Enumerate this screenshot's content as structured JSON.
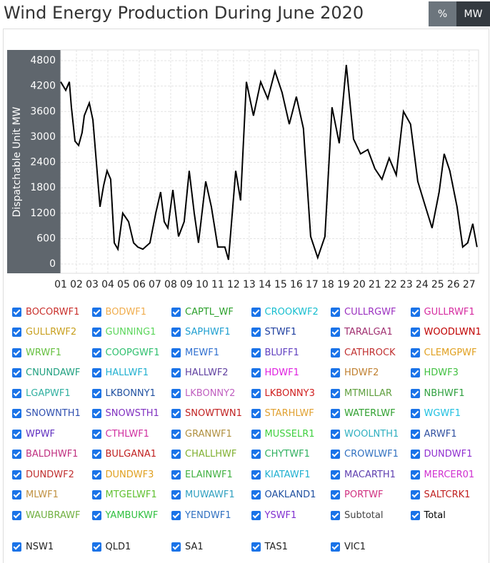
{
  "header": {
    "title": "Wind Energy Production During June 2020",
    "toggle": [
      "%",
      "MW"
    ],
    "active": 1
  },
  "chart_data": {
    "type": "line",
    "y_label": "Dispatchable Unit MW",
    "xlim": [
      1,
      27.6
    ],
    "xticks": [
      {
        "value": 1,
        "label": "01"
      },
      {
        "value": 2,
        "label": "02"
      },
      {
        "value": 3,
        "label": "03"
      },
      {
        "value": 4,
        "label": "04"
      },
      {
        "value": 5,
        "label": "05"
      },
      {
        "value": 6,
        "label": "06"
      },
      {
        "value": 7,
        "label": "07"
      },
      {
        "value": 8,
        "label": "08"
      },
      {
        "value": 9,
        "label": "09"
      },
      {
        "value": 10,
        "label": "10"
      },
      {
        "value": 11,
        "label": "11"
      },
      {
        "value": 12,
        "label": "12"
      },
      {
        "value": 13,
        "label": "13"
      },
      {
        "value": 14,
        "label": "14"
      },
      {
        "value": 15,
        "label": "15"
      },
      {
        "value": 16,
        "label": "16"
      },
      {
        "value": 17,
        "label": "17"
      },
      {
        "value": 18,
        "label": "18"
      },
      {
        "value": 19,
        "label": "19"
      },
      {
        "value": 20,
        "label": "20"
      },
      {
        "value": 21,
        "label": "21"
      },
      {
        "value": 22,
        "label": "22"
      },
      {
        "value": 23,
        "label": "23"
      },
      {
        "value": 24,
        "label": "24"
      },
      {
        "value": 25,
        "label": "25"
      },
      {
        "value": 26,
        "label": "26"
      },
      {
        "value": 27,
        "label": "27"
      }
    ],
    "ylim": [
      0,
      4800
    ],
    "yticks": [
      0,
      600,
      1200,
      1800,
      2400,
      3000,
      3600,
      4200,
      4800
    ],
    "grid": true,
    "series": [
      {
        "name": "Total",
        "color": "#000000",
        "x": [
          1.0,
          1.32,
          1.55,
          1.68,
          1.91,
          2.14,
          2.36,
          2.5,
          2.82,
          3.05,
          3.27,
          3.5,
          3.73,
          3.95,
          4.18,
          4.41,
          4.64,
          4.95,
          5.32,
          5.64,
          5.91,
          6.23,
          6.68,
          7.05,
          7.36,
          7.59,
          7.82,
          8.14,
          8.5,
          8.86,
          9.18,
          9.5,
          9.77,
          10.23,
          10.59,
          11.0,
          11.45,
          11.68,
          12.14,
          12.45,
          12.82,
          13.27,
          13.73,
          14.18,
          14.64,
          15.09,
          15.55,
          16.0,
          16.45,
          16.91,
          17.36,
          17.82,
          18.27,
          18.73,
          19.18,
          19.64,
          20.09,
          20.55,
          21.0,
          21.45,
          21.91,
          22.36,
          22.82,
          23.27,
          23.73,
          24.18,
          24.64,
          25.09,
          25.41,
          25.77,
          26.23,
          26.59,
          26.91,
          27.23,
          27.5
        ],
        "values": [
          4300,
          4100,
          4300,
          3700,
          2900,
          2800,
          3100,
          3500,
          3800,
          3400,
          2400,
          1350,
          1850,
          2200,
          2000,
          500,
          350,
          1200,
          1000,
          500,
          400,
          350,
          500,
          1200,
          1700,
          1000,
          850,
          1750,
          650,
          1000,
          2200,
          1200,
          500,
          1950,
          1350,
          400,
          400,
          100,
          2200,
          1500,
          4300,
          3500,
          4300,
          3900,
          4550,
          4050,
          3300,
          3950,
          3200,
          650,
          150,
          650,
          3700,
          2850,
          4700,
          2950,
          2600,
          2700,
          2250,
          2000,
          2500,
          2100,
          3600,
          3300,
          1950,
          1400,
          850,
          1700,
          2600,
          2200,
          1350,
          400,
          500,
          950,
          400
        ]
      }
    ]
  },
  "units": [
    {
      "name": "BOCORWF1",
      "color": "#c9302c"
    },
    {
      "name": "BODWF1",
      "color": "#f0ad4e"
    },
    {
      "name": "CAPTL_WF",
      "color": "#2ca02c"
    },
    {
      "name": "CROOKWF2",
      "color": "#17becf"
    },
    {
      "name": "CULLRGWF",
      "color": "#9b30c0"
    },
    {
      "name": "GULLRWF1",
      "color": "#d62ca0"
    },
    {
      "name": "GULLRWF2",
      "color": "#c8a020"
    },
    {
      "name": "GUNNING1",
      "color": "#5cd65c"
    },
    {
      "name": "SAPHWF1",
      "color": "#1f9fd0"
    },
    {
      "name": "STWF1",
      "color": "#2040a0"
    },
    {
      "name": "TARALGA1",
      "color": "#a03070"
    },
    {
      "name": "WOODLWN1",
      "color": "#c00000"
    },
    {
      "name": "WRWF1",
      "color": "#66c040"
    },
    {
      "name": "COOPGWF1",
      "color": "#30c070"
    },
    {
      "name": "MEWF1",
      "color": "#3070d0"
    },
    {
      "name": "BLUFF1",
      "color": "#6040c0"
    },
    {
      "name": "CATHROCK",
      "color": "#c03030"
    },
    {
      "name": "CLEMGPWF",
      "color": "#e0a020"
    },
    {
      "name": "CNUNDAWF",
      "color": "#20a080"
    },
    {
      "name": "HALLWF1",
      "color": "#20b0d0"
    },
    {
      "name": "HALLWF2",
      "color": "#6040a0"
    },
    {
      "name": "HDWF1",
      "color": "#e020e0"
    },
    {
      "name": "HDWF2",
      "color": "#c08030"
    },
    {
      "name": "HDWF3",
      "color": "#40c040"
    },
    {
      "name": "LGAPWF1",
      "color": "#30b0a0"
    },
    {
      "name": "LKBONNY1",
      "color": "#2050a0"
    },
    {
      "name": "LKBONNY2",
      "color": "#c060c0"
    },
    {
      "name": "LKBONNY3",
      "color": "#d02020"
    },
    {
      "name": "MTMILLAR",
      "color": "#60a040"
    },
    {
      "name": "NBHWF1",
      "color": "#30a040"
    },
    {
      "name": "SNOWNTH1",
      "color": "#3050b0"
    },
    {
      "name": "SNOWSTH1",
      "color": "#8030c0"
    },
    {
      "name": "SNOWTWN1",
      "color": "#c02020"
    },
    {
      "name": "STARHLWF",
      "color": "#e0a030"
    },
    {
      "name": "WATERLWF",
      "color": "#30a030"
    },
    {
      "name": "WGWF1",
      "color": "#20c0e0"
    },
    {
      "name": "WPWF",
      "color": "#6030c0"
    },
    {
      "name": "CTHLWF1",
      "color": "#d030a0"
    },
    {
      "name": "GRANWF1",
      "color": "#b09040"
    },
    {
      "name": "MUSSELR1",
      "color": "#40d040"
    },
    {
      "name": "WOOLNTH1",
      "color": "#30b0c0"
    },
    {
      "name": "ARWF1",
      "color": "#3050a0"
    },
    {
      "name": "BALDHWF1",
      "color": "#c03080"
    },
    {
      "name": "BULGANA1",
      "color": "#c02020"
    },
    {
      "name": "CHALLHWF",
      "color": "#80b030"
    },
    {
      "name": "CHYTWF1",
      "color": "#30b060"
    },
    {
      "name": "CROWLWF1",
      "color": "#3070c0"
    },
    {
      "name": "DUNDWF1",
      "color": "#9030d0"
    },
    {
      "name": "DUNDWF2",
      "color": "#c03030"
    },
    {
      "name": "DUNDWF3",
      "color": "#e0a020"
    },
    {
      "name": "ELAINWF1",
      "color": "#40b040"
    },
    {
      "name": "KIATAWF1",
      "color": "#20b0d0"
    },
    {
      "name": "MACARTH1",
      "color": "#6040b0"
    },
    {
      "name": "MERCER01",
      "color": "#d030d0"
    },
    {
      "name": "MLWF1",
      "color": "#c09040"
    },
    {
      "name": "MTGELWF1",
      "color": "#60c030"
    },
    {
      "name": "MUWAWF1",
      "color": "#30a0c0"
    },
    {
      "name": "OAKLAND1",
      "color": "#2050a0"
    },
    {
      "name": "PORTWF",
      "color": "#d03080"
    },
    {
      "name": "SALTCRK1",
      "color": "#c02020"
    },
    {
      "name": "WAUBRAWF",
      "color": "#70b040"
    },
    {
      "name": "YAMBUKWF",
      "color": "#30c040"
    },
    {
      "name": "YENDWF1",
      "color": "#3070c0"
    },
    {
      "name": "YSWF1",
      "color": "#8030d0"
    },
    {
      "name": "Subtotal",
      "color": "#444444"
    }
  ],
  "regions": [
    "NSW1",
    "QLD1",
    "SA1",
    "TAS1",
    "VIC1"
  ]
}
